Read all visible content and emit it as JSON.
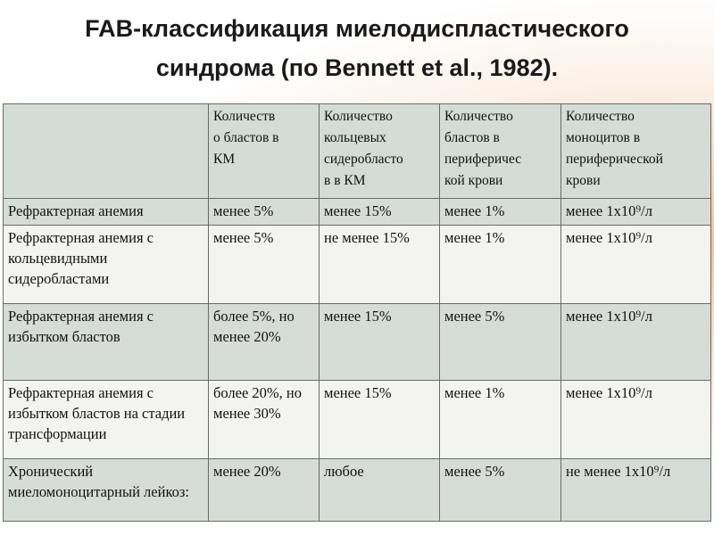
{
  "title": {
    "line1": "FAB-классификация миелодиспластического",
    "line2": "синдрома (по Bennett et al., 1982)."
  },
  "table": {
    "headers": [
      "",
      "Количество бластов в КМ",
      "Количество кольцевых сидеробластов в КМ",
      "Количество бластов в периферической крови",
      "Количество моноцитов в периферической крови"
    ],
    "header_html": [
      "",
      "Количеств<br>о бластов в<br>КМ",
      "Количество<br>кольцевых<br>сидеробласто<br>в в КМ",
      "Количество<br>бластов в<br>периферичес<br>кой крови",
      "Количество<br>моноцитов в<br>периферической<br>крови"
    ],
    "rows": [
      [
        "Рефрактерная анемия",
        "менее 5%",
        "менее 15%",
        "менее 1%",
        "менее 1х10⁹/л"
      ],
      [
        "Рефрактерная анемия с кольцевидными сидеробластами",
        "менее 5%",
        "не менее 15%",
        "менее 1%",
        "менее 1х10⁹/л"
      ],
      [
        "Рефрактерная анемия с избытком бластов",
        "более 5%, но менее 20%",
        "менее 15%",
        "менее 5%",
        "менее 1х10⁹/л"
      ],
      [
        "Рефрактерная анемия с избытком бластов на стадии трансформации",
        "более 20%, но менее 30%",
        "менее 15%",
        "менее 1%",
        "менее 1х10⁹/л"
      ],
      [
        "Хронический миеломоноцитарный лейкоз:",
        "менее 20%",
        "любое",
        "менее 5%",
        "не менее 1х10⁹/л"
      ]
    ]
  }
}
